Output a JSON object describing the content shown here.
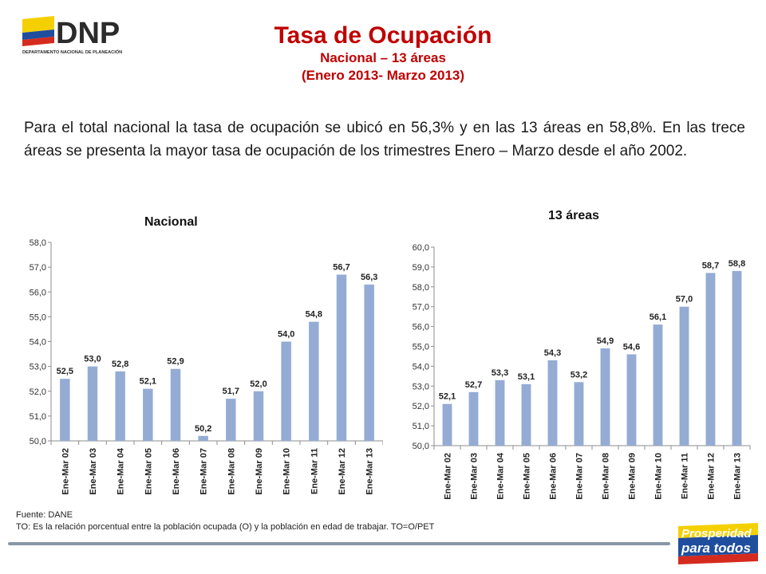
{
  "logo": {
    "text": "DNP",
    "subtext": "DEPARTAMENTO NACIONAL DE PLANEACIÓN",
    "colors": {
      "yellow": "#f5d000",
      "blue": "#1f4e9e",
      "red": "#d52b1e",
      "text": "#2b2b2b"
    }
  },
  "header": {
    "title": "Tasa de Ocupación",
    "subtitle1": "Nacional – 13 áreas",
    "subtitle2": "(Enero 2013- Marzo 2013)"
  },
  "description": "Para el total nacional la tasa de ocupación se ubicó en 56,3% y en las 13 áreas en 58,8%. En las trece áreas se presenta la mayor tasa de ocupación de los trimestres Enero – Marzo desde el año 2002.",
  "chart_data": [
    {
      "type": "bar",
      "title": "Nacional",
      "categories": [
        "Ene-Mar 02",
        "Ene-Mar 03",
        "Ene-Mar 04",
        "Ene-Mar 05",
        "Ene-Mar 06",
        "Ene-Mar 07",
        "Ene-Mar 08",
        "Ene-Mar 09",
        "Ene-Mar 10",
        "Ene-Mar 11",
        "Ene-Mar 12",
        "Ene-Mar 13"
      ],
      "values": [
        52.5,
        53.0,
        52.8,
        52.1,
        52.9,
        50.2,
        51.7,
        52.0,
        54.0,
        54.8,
        56.7,
        56.3
      ],
      "value_labels": [
        "52,5",
        "53,0",
        "52,8",
        "52,1",
        "52,9",
        "50,2",
        "51,7",
        "52,0",
        "54,0",
        "54,8",
        "56,7",
        "56,3"
      ],
      "ylim": [
        50,
        58
      ],
      "yticks": [
        "50,0",
        "51,0",
        "52,0",
        "53,0",
        "54,0",
        "55,0",
        "56,0",
        "57,0",
        "58,0"
      ],
      "grid": false,
      "bar_color": "#94acd4"
    },
    {
      "type": "bar",
      "title": "13 áreas",
      "categories": [
        "Ene-Mar 02",
        "Ene-Mar 03",
        "Ene-Mar 04",
        "Ene-Mar 05",
        "Ene-Mar 06",
        "Ene-Mar 07",
        "Ene-Mar 08",
        "Ene-Mar 09",
        "Ene-Mar 10",
        "Ene-Mar 11",
        "Ene-Mar 12",
        "Ene-Mar 13"
      ],
      "values": [
        52.1,
        52.7,
        53.3,
        53.1,
        54.3,
        53.2,
        54.9,
        54.6,
        56.1,
        57.0,
        58.7,
        58.8
      ],
      "value_labels": [
        "52,1",
        "52,7",
        "53,3",
        "53,1",
        "54,3",
        "53,2",
        "54,9",
        "54,6",
        "56,1",
        "57,0",
        "58,7",
        "58,8"
      ],
      "ylim": [
        50,
        60
      ],
      "yticks": [
        "50,0",
        "51,0",
        "52,0",
        "53,0",
        "54,0",
        "55,0",
        "56,0",
        "57,0",
        "58,0",
        "59,0",
        "60,0"
      ],
      "grid": false,
      "bar_color": "#94acd4"
    }
  ],
  "footer": {
    "source": "Fuente: DANE",
    "note": "TO: Es la relación porcentual entre la población ocupada (O) y la población  en edad de trabajar. TO=O/PET"
  },
  "slogan": {
    "line1": "Prosperidad",
    "line2": "para todos",
    "colors": {
      "yellow": "#f5d000",
      "blue": "#1f4e9e",
      "red": "#d52b1e",
      "text": "#ffffff"
    }
  }
}
